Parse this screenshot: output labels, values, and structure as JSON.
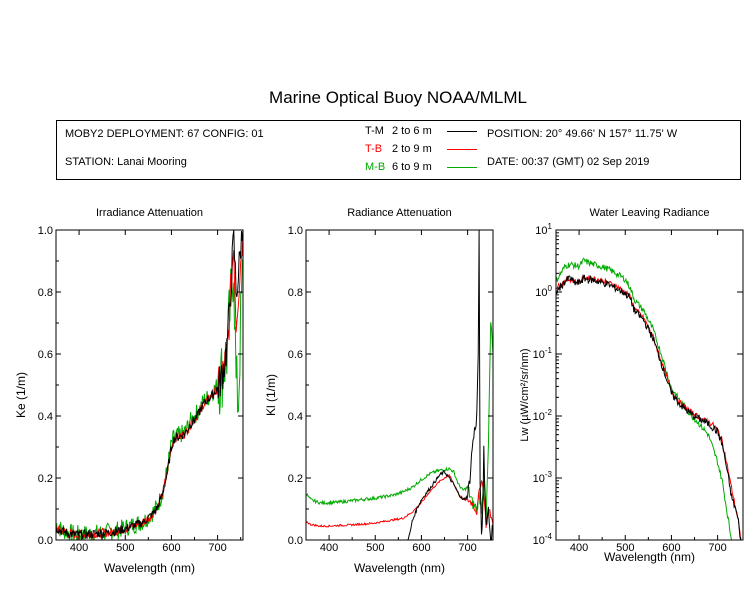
{
  "title": "Marine Optical Buoy NOAA/MLML",
  "info": {
    "deployment": "MOBY2 DEPLOYMENT: 67 CONFIG: 01",
    "station": "STATION: Lanai Mooring",
    "position": "POSITION: 20° 49.66' N   157° 11.75' W",
    "date": "DATE: 00:37 (GMT) 02 Sep 2019",
    "legend": [
      {
        "label": "T-M",
        "range": "2 to 6  m",
        "color": "#000000"
      },
      {
        "label": "T-B",
        "range": "2 to 9  m",
        "color": "#ff0000"
      },
      {
        "label": "M-B",
        "range": "6 to 9  m",
        "color": "#00aa00"
      }
    ]
  },
  "chart_data": [
    {
      "type": "line",
      "title": "Irradiance Attenuation",
      "xlabel": "Wavelength (nm)",
      "ylabel": "Ke  (1/m)",
      "xlim": [
        350,
        755
      ],
      "ylim": [
        0,
        1
      ],
      "xticks": [
        "400",
        "500",
        "600",
        "700"
      ],
      "yticks": [
        "0.0",
        "0.2",
        "0.4",
        "0.6",
        "0.8",
        "1.0"
      ],
      "series": [
        {
          "color": "#00aa00",
          "noise": 0.06,
          "x": [
            350,
            360,
            370,
            380,
            390,
            400,
            420,
            440,
            460,
            480,
            500,
            520,
            540,
            560,
            570,
            580,
            590,
            600,
            605,
            610,
            620,
            630,
            640,
            650,
            660,
            670,
            680,
            690,
            700,
            710,
            720,
            725,
            730,
            735,
            740,
            745,
            750,
            755
          ],
          "y": [
            0.05,
            0.035,
            0.028,
            0.022,
            0.02,
            0.018,
            0.02,
            0.022,
            0.025,
            0.03,
            0.04,
            0.05,
            0.06,
            0.09,
            0.11,
            0.15,
            0.22,
            0.31,
            0.33,
            0.335,
            0.34,
            0.35,
            0.38,
            0.4,
            0.42,
            0.45,
            0.46,
            0.48,
            0.5,
            0.54,
            0.6,
            0.7,
            0.8,
            0.9,
            0.5,
            0.45,
            0.7,
            0.9
          ]
        },
        {
          "color": "#ff0000",
          "noise": 0.03,
          "x": [
            350,
            360,
            370,
            380,
            390,
            400,
            420,
            440,
            460,
            480,
            500,
            520,
            540,
            560,
            570,
            580,
            590,
            600,
            605,
            610,
            620,
            630,
            640,
            650,
            660,
            670,
            680,
            690,
            700,
            710,
            720,
            725,
            730,
            735,
            740,
            745,
            750,
            755
          ],
          "y": [
            0.04,
            0.03,
            0.025,
            0.02,
            0.018,
            0.017,
            0.019,
            0.021,
            0.024,
            0.028,
            0.037,
            0.047,
            0.058,
            0.085,
            0.105,
            0.145,
            0.21,
            0.3,
            0.325,
            0.33,
            0.335,
            0.345,
            0.37,
            0.39,
            0.41,
            0.44,
            0.455,
            0.47,
            0.49,
            0.53,
            0.6,
            0.7,
            0.85,
            0.95,
            0.7,
            0.8,
            0.9,
            1.0
          ]
        },
        {
          "color": "#000000",
          "noise": 0.03,
          "x": [
            350,
            360,
            370,
            380,
            390,
            400,
            420,
            440,
            460,
            480,
            500,
            520,
            540,
            560,
            570,
            580,
            590,
            600,
            605,
            610,
            620,
            630,
            640,
            650,
            660,
            670,
            680,
            690,
            700,
            710,
            720,
            725,
            730,
            735,
            740,
            745,
            750,
            755
          ],
          "y": [
            0.04,
            0.03,
            0.025,
            0.02,
            0.018,
            0.017,
            0.019,
            0.021,
            0.024,
            0.028,
            0.037,
            0.047,
            0.058,
            0.085,
            0.105,
            0.145,
            0.21,
            0.3,
            0.325,
            0.33,
            0.335,
            0.345,
            0.37,
            0.39,
            0.41,
            0.44,
            0.455,
            0.47,
            0.49,
            0.53,
            0.62,
            0.72,
            0.85,
            0.98,
            0.8,
            0.85,
            0.95,
            1.0
          ]
        }
      ]
    },
    {
      "type": "line",
      "title": "Radiance Attenuation",
      "xlabel": "Wavelength (nm)",
      "ylabel": "Kl  (1/m)",
      "xlim": [
        350,
        755
      ],
      "ylim": [
        0,
        1
      ],
      "xticks": [
        "400",
        "500",
        "600",
        "700"
      ],
      "yticks": [
        "0.0",
        "0.2",
        "0.4",
        "0.6",
        "0.8",
        "1.0"
      ],
      "series": [
        {
          "color": "#00aa00",
          "noise": 0.01,
          "x": [
            350,
            360,
            380,
            400,
            420,
            450,
            480,
            500,
            520,
            540,
            560,
            580,
            600,
            620,
            640,
            660,
            670,
            680,
            690,
            700,
            710,
            720,
            725,
            730,
            735,
            740,
            745,
            750,
            755
          ],
          "y": [
            0.15,
            0.13,
            0.12,
            0.12,
            0.122,
            0.127,
            0.132,
            0.135,
            0.14,
            0.145,
            0.155,
            0.17,
            0.195,
            0.215,
            0.225,
            0.23,
            0.22,
            0.18,
            0.16,
            0.17,
            0.12,
            0.1,
            0.15,
            0.1,
            0.2,
            0.05,
            0.3,
            0.7,
            0.6
          ]
        },
        {
          "color": "#ff0000",
          "noise": 0.006,
          "x": [
            350,
            360,
            380,
            400,
            420,
            440,
            460,
            480,
            500,
            520,
            540,
            560,
            580,
            600,
            620,
            640,
            650,
            660,
            670,
            680,
            690,
            700,
            710,
            720,
            725,
            730,
            735,
            740,
            745,
            750,
            755
          ],
          "y": [
            0.06,
            0.05,
            0.045,
            0.045,
            0.047,
            0.048,
            0.05,
            0.052,
            0.055,
            0.06,
            0.065,
            0.07,
            0.09,
            0.12,
            0.16,
            0.19,
            0.2,
            0.21,
            0.18,
            0.15,
            0.13,
            0.13,
            0.12,
            0.09,
            0.15,
            0.2,
            0.15,
            0.05,
            0.1,
            0.08,
            0.05
          ]
        },
        {
          "color": "#000000",
          "noise": 0.01,
          "x": [
            570,
            575,
            580,
            590,
            600,
            610,
            620,
            630,
            640,
            650,
            660,
            670,
            680,
            690,
            700,
            705,
            710,
            715,
            720,
            723,
            725,
            727,
            730,
            733,
            735,
            740,
            745,
            750,
            755
          ],
          "y": [
            0.0,
            0.02,
            0.06,
            0.1,
            0.13,
            0.15,
            0.17,
            0.19,
            0.21,
            0.22,
            0.2,
            0.18,
            0.15,
            0.13,
            0.14,
            0.2,
            0.3,
            0.35,
            0.4,
            0.6,
            0.98,
            0.2,
            0.0,
            0.1,
            0.3,
            0.05,
            0.1,
            0.0,
            0.05
          ]
        }
      ]
    },
    {
      "type": "line",
      "title": "Water Leaving Radiance",
      "xlabel": "Wavelength (nm)",
      "ylabel": "Lw  (µW/cm²/sr/nm)",
      "yscale": "log",
      "xlim": [
        350,
        755
      ],
      "ylim": [
        0.0001,
        10
      ],
      "xticks": [
        "400",
        "500",
        "600",
        "700"
      ],
      "yticks": [
        "10-4",
        "10-3",
        "10-2",
        "10-1",
        "100",
        "101"
      ],
      "series": [
        {
          "color": "#00aa00",
          "noise": 0.05,
          "x": [
            350,
            360,
            370,
            380,
            390,
            400,
            410,
            420,
            430,
            440,
            460,
            480,
            500,
            510,
            520,
            540,
            560,
            580,
            600,
            620,
            640,
            660,
            680,
            690,
            700,
            710,
            720,
            730
          ],
          "y": [
            1.5,
            2.0,
            2.6,
            2.8,
            2.7,
            2.6,
            3.2,
            3.0,
            2.8,
            2.7,
            2.4,
            2.0,
            1.6,
            1.2,
            0.75,
            0.5,
            0.25,
            0.09,
            0.028,
            0.017,
            0.011,
            0.0075,
            0.005,
            0.003,
            0.0018,
            0.0009,
            0.0003,
            0.0001
          ]
        },
        {
          "color": "#ff0000",
          "noise": 0.04,
          "x": [
            350,
            360,
            370,
            380,
            390,
            400,
            410,
            420,
            430,
            440,
            460,
            480,
            500,
            510,
            520,
            540,
            560,
            580,
            600,
            620,
            640,
            660,
            680,
            690,
            700,
            710,
            720,
            730,
            740,
            745,
            750
          ],
          "y": [
            1.2,
            1.3,
            1.5,
            1.6,
            1.5,
            1.45,
            1.7,
            1.7,
            1.65,
            1.6,
            1.45,
            1.25,
            1.0,
            0.85,
            0.55,
            0.38,
            0.19,
            0.07,
            0.025,
            0.016,
            0.012,
            0.0095,
            0.008,
            0.0072,
            0.006,
            0.004,
            0.0017,
            0.0007,
            0.0003,
            0.0002,
            0.0001
          ]
        },
        {
          "color": "#000000",
          "noise": 0.06,
          "x": [
            350,
            360,
            370,
            380,
            390,
            400,
            410,
            420,
            430,
            440,
            460,
            480,
            500,
            510,
            520,
            540,
            560,
            580,
            600,
            620,
            640,
            660,
            680,
            690,
            700,
            710,
            720,
            730,
            740,
            745,
            750
          ],
          "y": [
            1.0,
            1.2,
            1.5,
            1.7,
            1.4,
            1.4,
            1.65,
            1.6,
            1.55,
            1.5,
            1.35,
            1.15,
            0.95,
            0.8,
            0.5,
            0.35,
            0.18,
            0.065,
            0.023,
            0.015,
            0.011,
            0.009,
            0.0075,
            0.0065,
            0.0055,
            0.0035,
            0.0014,
            0.0005,
            0.0003,
            0.0002,
            0.0001
          ]
        }
      ]
    }
  ]
}
